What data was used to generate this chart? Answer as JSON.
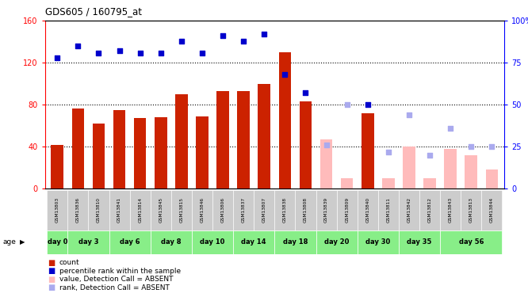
{
  "title": "GDS605 / 160795_at",
  "samples": [
    "GSM13803",
    "GSM13836",
    "GSM13810",
    "GSM13841",
    "GSM13814",
    "GSM13845",
    "GSM13815",
    "GSM13846",
    "GSM13806",
    "GSM13837",
    "GSM13807",
    "GSM13838",
    "GSM13808",
    "GSM13839",
    "GSM13809",
    "GSM13840",
    "GSM13811",
    "GSM13842",
    "GSM13812",
    "GSM13843",
    "GSM13813",
    "GSM13844"
  ],
  "day_groups": {
    "day 0": [
      "GSM13803"
    ],
    "day 3": [
      "GSM13836",
      "GSM13810"
    ],
    "day 6": [
      "GSM13841",
      "GSM13814"
    ],
    "day 8": [
      "GSM13845",
      "GSM13815"
    ],
    "day 10": [
      "GSM13846",
      "GSM13806"
    ],
    "day 14": [
      "GSM13837",
      "GSM13807"
    ],
    "day 18": [
      "GSM13838",
      "GSM13808"
    ],
    "day 20": [
      "GSM13839",
      "GSM13809"
    ],
    "day 30": [
      "GSM13840",
      "GSM13811"
    ],
    "day 35": [
      "GSM13842",
      "GSM13812"
    ],
    "day 56": [
      "GSM13843",
      "GSM13813",
      "GSM13844"
    ]
  },
  "count_present": {
    "GSM13803": 42,
    "GSM13836": 76,
    "GSM13810": 62,
    "GSM13841": 75,
    "GSM13814": 67,
    "GSM13845": 68,
    "GSM13815": 90,
    "GSM13846": 69,
    "GSM13806": 93,
    "GSM13837": 93,
    "GSM13807": 100,
    "GSM13838": 130,
    "GSM13808": 83,
    "GSM13839": null,
    "GSM13809": null,
    "GSM13840": 72,
    "GSM13811": null,
    "GSM13842": null,
    "GSM13812": null,
    "GSM13843": null,
    "GSM13813": null,
    "GSM13844": null
  },
  "count_absent": {
    "GSM13803": null,
    "GSM13836": null,
    "GSM13810": null,
    "GSM13841": null,
    "GSM13814": null,
    "GSM13845": null,
    "GSM13815": null,
    "GSM13846": null,
    "GSM13806": null,
    "GSM13837": null,
    "GSM13807": null,
    "GSM13838": null,
    "GSM13808": null,
    "GSM13839": 47,
    "GSM13809": 10,
    "GSM13840": null,
    "GSM13811": 10,
    "GSM13842": 40,
    "GSM13812": 10,
    "GSM13843": 38,
    "GSM13813": 32,
    "GSM13844": 18
  },
  "rank_present": {
    "GSM13803": 78,
    "GSM13836": 85,
    "GSM13810": 81,
    "GSM13841": 82,
    "GSM13814": 81,
    "GSM13845": 81,
    "GSM13815": 88,
    "GSM13846": 81,
    "GSM13806": 91,
    "GSM13837": 88,
    "GSM13807": 92,
    "GSM13838": 68,
    "GSM13808": 57,
    "GSM13839": null,
    "GSM13809": null,
    "GSM13840": 50,
    "GSM13811": null,
    "GSM13842": null,
    "GSM13812": null,
    "GSM13843": null,
    "GSM13813": null,
    "GSM13844": null
  },
  "rank_absent": {
    "GSM13803": null,
    "GSM13836": null,
    "GSM13810": null,
    "GSM13841": null,
    "GSM13814": null,
    "GSM13845": null,
    "GSM13815": null,
    "GSM13846": null,
    "GSM13806": null,
    "GSM13837": null,
    "GSM13807": null,
    "GSM13838": null,
    "GSM13808": null,
    "GSM13839": 26,
    "GSM13809": 50,
    "GSM13840": null,
    "GSM13811": 22,
    "GSM13842": 44,
    "GSM13812": 20,
    "GSM13843": 36,
    "GSM13813": 25,
    "GSM13844": 25
  },
  "ylim_left": [
    0,
    160
  ],
  "ylim_right": [
    0,
    100
  ],
  "yticks_left": [
    0,
    40,
    80,
    120,
    160
  ],
  "yticks_right": [
    0,
    25,
    50,
    75,
    100
  ],
  "bar_color_present": "#cc2200",
  "bar_color_absent": "#ffbbbb",
  "rank_color_present": "#0000cc",
  "rank_color_absent": "#aaaaee",
  "sample_row_color": "#cccccc",
  "day_row_color": "#88ee88",
  "legend_items": [
    {
      "label": "count",
      "color": "#cc2200"
    },
    {
      "label": "percentile rank within the sample",
      "color": "#0000cc"
    },
    {
      "label": "value, Detection Call = ABSENT",
      "color": "#ffbbbb"
    },
    {
      "label": "rank, Detection Call = ABSENT",
      "color": "#aaaaee"
    }
  ]
}
